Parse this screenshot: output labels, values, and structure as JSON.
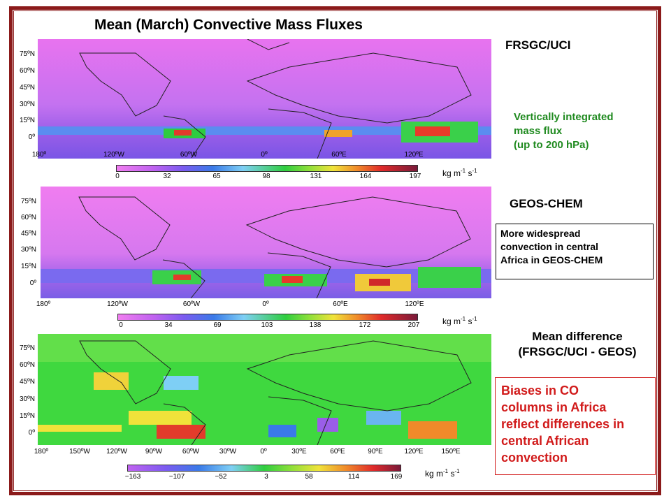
{
  "title": "Mean (March) Convective Mass Fluxes",
  "panel1": {
    "label": "FRSGC/UCI",
    "note_lines": [
      "Vertically integrated",
      "mass flux",
      "(up to 200 hPa)"
    ],
    "lat_ticks": [
      "75ºN",
      "60ºN",
      "45ºN",
      "30ºN",
      "15ºN",
      "0º"
    ],
    "lon_ticks": [
      "180º",
      "120ºW",
      "60ºW",
      "0º",
      "60ºE",
      "120ºE"
    ],
    "colorbar_ticks": [
      "0",
      "32",
      "65",
      "98",
      "131",
      "164",
      "197"
    ],
    "unit_base": "kg m",
    "unit_exp1": "-1",
    "unit_mid": " s",
    "unit_exp2": "-1"
  },
  "panel2": {
    "label": "GEOS-CHEM",
    "note_lines": [
      "More widespread",
      "convection in central",
      "Africa in GEOS-CHEM"
    ],
    "lat_ticks": [
      "75ºN",
      "60ºN",
      "45ºN",
      "30ºN",
      "15ºN",
      "0º"
    ],
    "lon_ticks": [
      "180º",
      "120ºW",
      "60ºW",
      "0º",
      "60ºE",
      "120ºE"
    ],
    "colorbar_ticks": [
      "0",
      "34",
      "69",
      "103",
      "138",
      "172",
      "207"
    ],
    "unit_base": "kg m",
    "unit_exp1": "-1",
    "unit_mid": " s",
    "unit_exp2": "-1"
  },
  "panel3": {
    "label_lines": [
      "Mean difference",
      "(FRSGC/UCI  - GEOS)"
    ],
    "note_lines": [
      "Biases in CO",
      "columns in Africa",
      "reflect differences in",
      "central  African",
      "convection"
    ],
    "lat_ticks": [
      "75ºN",
      "60ºN",
      "45ºN",
      "30ºN",
      "15ºN",
      "0º"
    ],
    "lon_ticks": [
      "180º",
      "150ºW",
      "120ºW",
      "90ºW",
      "60ºW",
      "30ºW",
      "0º",
      "30ºE",
      "60ºE",
      "90ºE",
      "120ºE",
      "150ºE"
    ],
    "colorbar_ticks": [
      "−163",
      "−107",
      "−52",
      "3",
      "58",
      "114",
      "169"
    ],
    "unit_base": "kg m",
    "unit_exp1": "-1",
    "unit_mid": " s",
    "unit_exp2": "-1"
  },
  "colors": {
    "frame": "#8b1a1a",
    "green_note": "#1f8a1f",
    "red_note": "#d11a1a",
    "magenta_bg": "#f07df0",
    "diff_green": "#3fd83f"
  }
}
